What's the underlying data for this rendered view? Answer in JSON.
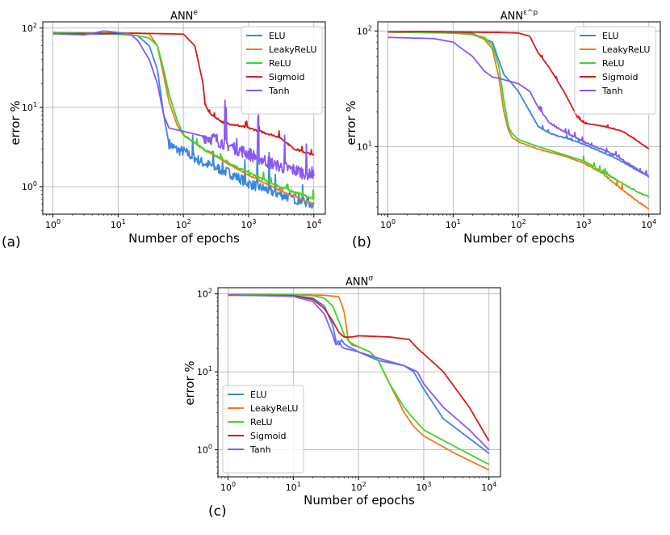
{
  "chart_data": [
    {
      "id": "a",
      "panel_label": "(a)",
      "type": "line",
      "title_base": "ANN",
      "title_superscript": "e",
      "xlabel": "Number of epochs",
      "ylabel": "error %",
      "xscale": "log",
      "yscale": "log",
      "xlim": [
        0.7,
        15000
      ],
      "ylim": [
        0.45,
        120
      ],
      "xticks": [
        {
          "v": 1,
          "base": "10",
          "exp": "0"
        },
        {
          "v": 10,
          "base": "10",
          "exp": "1"
        },
        {
          "v": 100,
          "base": "10",
          "exp": "2"
        },
        {
          "v": 1000,
          "base": "10",
          "exp": "3"
        },
        {
          "v": 10000,
          "base": "10",
          "exp": "4"
        }
      ],
      "yticks": [
        {
          "v": 1,
          "base": "10",
          "exp": "0"
        },
        {
          "v": 10,
          "base": "10",
          "exp": "1"
        },
        {
          "v": 100,
          "base": "10",
          "exp": "2"
        }
      ],
      "grid": true,
      "legend_position": "top-right",
      "series": [
        {
          "name": "ELU",
          "color": "#3a87e0",
          "noise": 0.22,
          "noise_start": 60,
          "x": [
            1,
            10,
            20,
            30,
            40,
            50,
            60,
            80,
            100,
            200,
            500,
            1000,
            3000,
            10000
          ],
          "y": [
            85,
            84,
            80,
            60,
            30,
            8,
            3.5,
            2.9,
            2.8,
            2.0,
            1.5,
            1.1,
            0.8,
            0.6
          ]
        },
        {
          "name": "LeakyReLU",
          "color": "#f07a1c",
          "noise": 0.02,
          "noise_start": 200,
          "x": [
            1,
            10,
            20,
            30,
            40,
            50,
            60,
            80,
            100,
            200,
            500,
            1000,
            3000,
            10000
          ],
          "y": [
            88,
            87,
            86,
            85,
            60,
            25,
            12,
            6,
            4.5,
            3.0,
            1.9,
            1.4,
            0.9,
            0.6
          ]
        },
        {
          "name": "ReLU",
          "color": "#3dd62a",
          "noise": 0.05,
          "noise_start": 100,
          "x": [
            1,
            5,
            10,
            20,
            30,
            40,
            50,
            60,
            80,
            100,
            200,
            500,
            1000,
            3000,
            10000
          ],
          "y": [
            88,
            86,
            84,
            80,
            75,
            60,
            30,
            15,
            7,
            4.5,
            3.0,
            2.0,
            1.5,
            1.0,
            0.7
          ]
        },
        {
          "name": "Sigmoid",
          "color": "#d41c1c",
          "noise": 0.04,
          "noise_start": 210,
          "x": [
            1,
            20,
            50,
            100,
            150,
            200,
            215,
            250,
            400,
            1000,
            3000,
            5000,
            10000
          ],
          "y": [
            85,
            86,
            85,
            84,
            60,
            20,
            11,
            8.5,
            6.5,
            5.5,
            4.2,
            3.0,
            2.5
          ]
        },
        {
          "name": "Tanh",
          "color": "#8b57f2",
          "noise": 0.28,
          "noise_start": 200,
          "x": [
            1,
            3,
            6,
            10,
            15,
            20,
            30,
            40,
            50,
            60,
            80,
            100,
            300,
            1000,
            3000,
            10000
          ],
          "y": [
            85,
            82,
            92,
            88,
            85,
            70,
            40,
            20,
            8,
            5.5,
            5.2,
            5.0,
            4.0,
            2.6,
            1.8,
            1.4
          ]
        }
      ]
    },
    {
      "id": "b",
      "panel_label": "(b)",
      "type": "line",
      "title_base": "ANN",
      "title_superscript": "ε^p",
      "xlabel": "Number of epochs",
      "ylabel": "error %",
      "xscale": "log",
      "yscale": "log",
      "xlim": [
        0.7,
        15000
      ],
      "ylim": [
        2.6,
        120
      ],
      "xticks": [
        {
          "v": 1,
          "base": "10",
          "exp": "0"
        },
        {
          "v": 10,
          "base": "10",
          "exp": "1"
        },
        {
          "v": 100,
          "base": "10",
          "exp": "2"
        },
        {
          "v": 1000,
          "base": "10",
          "exp": "3"
        },
        {
          "v": 10000,
          "base": "10",
          "exp": "4"
        }
      ],
      "yticks": [
        {
          "v": 10,
          "base": "10",
          "exp": "1"
        },
        {
          "v": 100,
          "base": "10",
          "exp": "2"
        }
      ],
      "grid": true,
      "legend_position": "top-right",
      "series": [
        {
          "name": "ELU",
          "color": "#3a87e0",
          "noise": 0.015,
          "noise_start": 150,
          "x": [
            1,
            10,
            20,
            40,
            60,
            80,
            100,
            150,
            200,
            300,
            500,
            1000,
            3000,
            10000
          ],
          "y": [
            98,
            97,
            95,
            80,
            42,
            35,
            30,
            20,
            15,
            13,
            12,
            10.5,
            8,
            5.5
          ]
        },
        {
          "name": "LeakyReLU",
          "color": "#f07a1c",
          "noise": 0.02,
          "noise_start": 1000,
          "x": [
            1,
            10,
            20,
            30,
            40,
            50,
            60,
            70,
            80,
            100,
            200,
            500,
            1000,
            2000,
            4000,
            7000,
            10000
          ],
          "y": [
            98,
            96,
            93,
            85,
            70,
            40,
            20,
            14,
            12,
            11,
            9.5,
            8.3,
            7.2,
            5.8,
            4.2,
            3.3,
            2.9
          ]
        },
        {
          "name": "ReLU",
          "color": "#3dd62a",
          "noise": 0.02,
          "noise_start": 1000,
          "x": [
            1,
            10,
            20,
            30,
            40,
            50,
            60,
            70,
            80,
            100,
            200,
            500,
            1000,
            2000,
            4000,
            7000,
            10000
          ],
          "y": [
            98,
            96,
            93,
            88,
            75,
            50,
            25,
            15,
            13,
            11.5,
            10,
            8.5,
            7.5,
            6.0,
            4.8,
            4.0,
            3.7
          ]
        },
        {
          "name": "Sigmoid",
          "color": "#d41c1c",
          "noise": 0.01,
          "noise_start": 200,
          "x": [
            1,
            3,
            10,
            50,
            100,
            150,
            200,
            250,
            300,
            500,
            800,
            1000,
            2000,
            4000,
            7000,
            10000
          ],
          "y": [
            98,
            99,
            98,
            97,
            96,
            90,
            65,
            55,
            48,
            30,
            18,
            16,
            15,
            13.5,
            11,
            9.5
          ]
        },
        {
          "name": "Tanh",
          "color": "#8b57f2",
          "noise": 0.02,
          "noise_start": 200,
          "x": [
            1,
            5,
            10,
            20,
            30,
            40,
            50,
            70,
            100,
            150,
            200,
            300,
            500,
            1000,
            3000,
            10000
          ],
          "y": [
            88,
            86,
            80,
            60,
            45,
            40,
            39,
            37,
            35,
            30,
            22,
            16,
            13.5,
            11,
            8.5,
            5.5
          ]
        }
      ]
    },
    {
      "id": "c",
      "panel_label": "(c)",
      "type": "line",
      "title_base": "ANN",
      "title_superscript": "σ",
      "xlabel": "Number of epochs",
      "ylabel": "error %",
      "xscale": "log",
      "yscale": "log",
      "xlim": [
        0.7,
        15000
      ],
      "ylim": [
        0.45,
        120
      ],
      "xticks": [
        {
          "v": 1,
          "base": "10",
          "exp": "0"
        },
        {
          "v": 10,
          "base": "10",
          "exp": "1"
        },
        {
          "v": 100,
          "base": "10",
          "exp": "2"
        },
        {
          "v": 1000,
          "base": "10",
          "exp": "3"
        },
        {
          "v": 10000,
          "base": "10",
          "exp": "4"
        }
      ],
      "yticks": [
        {
          "v": 1,
          "base": "10",
          "exp": "0"
        },
        {
          "v": 10,
          "base": "10",
          "exp": "1"
        },
        {
          "v": 100,
          "base": "10",
          "exp": "2"
        }
      ],
      "grid": true,
      "legend_position": "bottom-left",
      "series": [
        {
          "name": "ELU",
          "color": "#3a87e0",
          "noise": 0,
          "noise_start": 100000,
          "x": [
            1,
            10,
            20,
            30,
            40,
            45,
            50,
            55,
            60,
            70,
            80,
            100,
            200,
            500,
            700,
            1000,
            2000,
            5000,
            10000
          ],
          "y": [
            97,
            95,
            88,
            70,
            40,
            25,
            22,
            26,
            23,
            21,
            20,
            18,
            14,
            12,
            10,
            6,
            2.5,
            1.4,
            0.9
          ]
        },
        {
          "name": "LeakyReLU",
          "color": "#f07a1c",
          "noise": 0,
          "noise_start": 100000,
          "x": [
            1,
            10,
            30,
            50,
            60,
            70,
            80,
            100,
            150,
            200,
            300,
            500,
            700,
            1000,
            3000,
            10000
          ],
          "y": [
            98,
            98,
            96,
            92,
            60,
            25,
            22,
            21,
            18,
            14,
            7,
            3,
            2,
            1.5,
            0.9,
            0.55
          ]
        },
        {
          "name": "ReLU",
          "color": "#3dd62a",
          "noise": 0,
          "noise_start": 100000,
          "x": [
            1,
            10,
            20,
            30,
            40,
            50,
            60,
            70,
            80,
            100,
            150,
            200,
            300,
            500,
            700,
            1000,
            3000,
            10000
          ],
          "y": [
            99,
            98,
            95,
            88,
            70,
            45,
            30,
            25,
            23,
            21,
            18,
            14,
            7,
            3.5,
            2.5,
            1.8,
            1.1,
            0.65
          ]
        },
        {
          "name": "Sigmoid",
          "color": "#d41c1c",
          "noise": 0,
          "noise_start": 100000,
          "x": [
            1,
            10,
            20,
            30,
            40,
            50,
            60,
            80,
            100,
            300,
            600,
            800,
            1000,
            2000,
            5000,
            10000
          ],
          "y": [
            96,
            95,
            85,
            65,
            45,
            32,
            28,
            28,
            29,
            28,
            26,
            20,
            17,
            10,
            3.5,
            1.3
          ]
        },
        {
          "name": "Tanh",
          "color": "#8b57f2",
          "noise": 0,
          "noise_start": 100000,
          "x": [
            1,
            10,
            20,
            30,
            40,
            45,
            50,
            55,
            60,
            80,
            100,
            200,
            500,
            800,
            1000,
            2000,
            5000,
            10000
          ],
          "y": [
            97,
            93,
            80,
            55,
            30,
            22,
            25,
            21,
            20,
            19,
            18,
            15,
            12,
            10,
            7,
            3.5,
            1.8,
            1.0
          ]
        }
      ]
    }
  ]
}
